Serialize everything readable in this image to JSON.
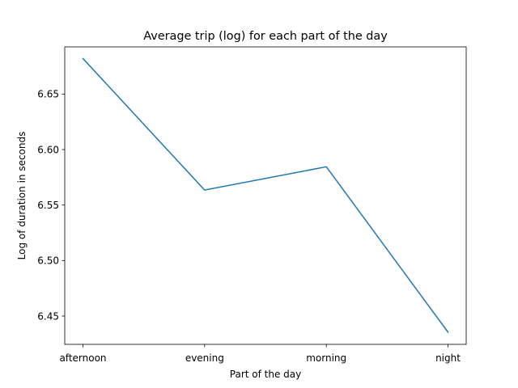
{
  "chart_data": {
    "type": "line",
    "title": "Average trip (log) for each part of the day",
    "xlabel": "Part of the day",
    "ylabel": "Log of duration in seconds",
    "categories": [
      "afternoon",
      "evening",
      "morning",
      "night"
    ],
    "series": [
      {
        "values": [
          6.682,
          6.5635,
          6.5845,
          6.4355
        ],
        "color": "#1f77b4"
      }
    ],
    "ylim": [
      6.4245,
      6.6925
    ],
    "yticks": [
      "6.45",
      "6.50",
      "6.55",
      "6.60",
      "6.65"
    ],
    "grid": false
  }
}
